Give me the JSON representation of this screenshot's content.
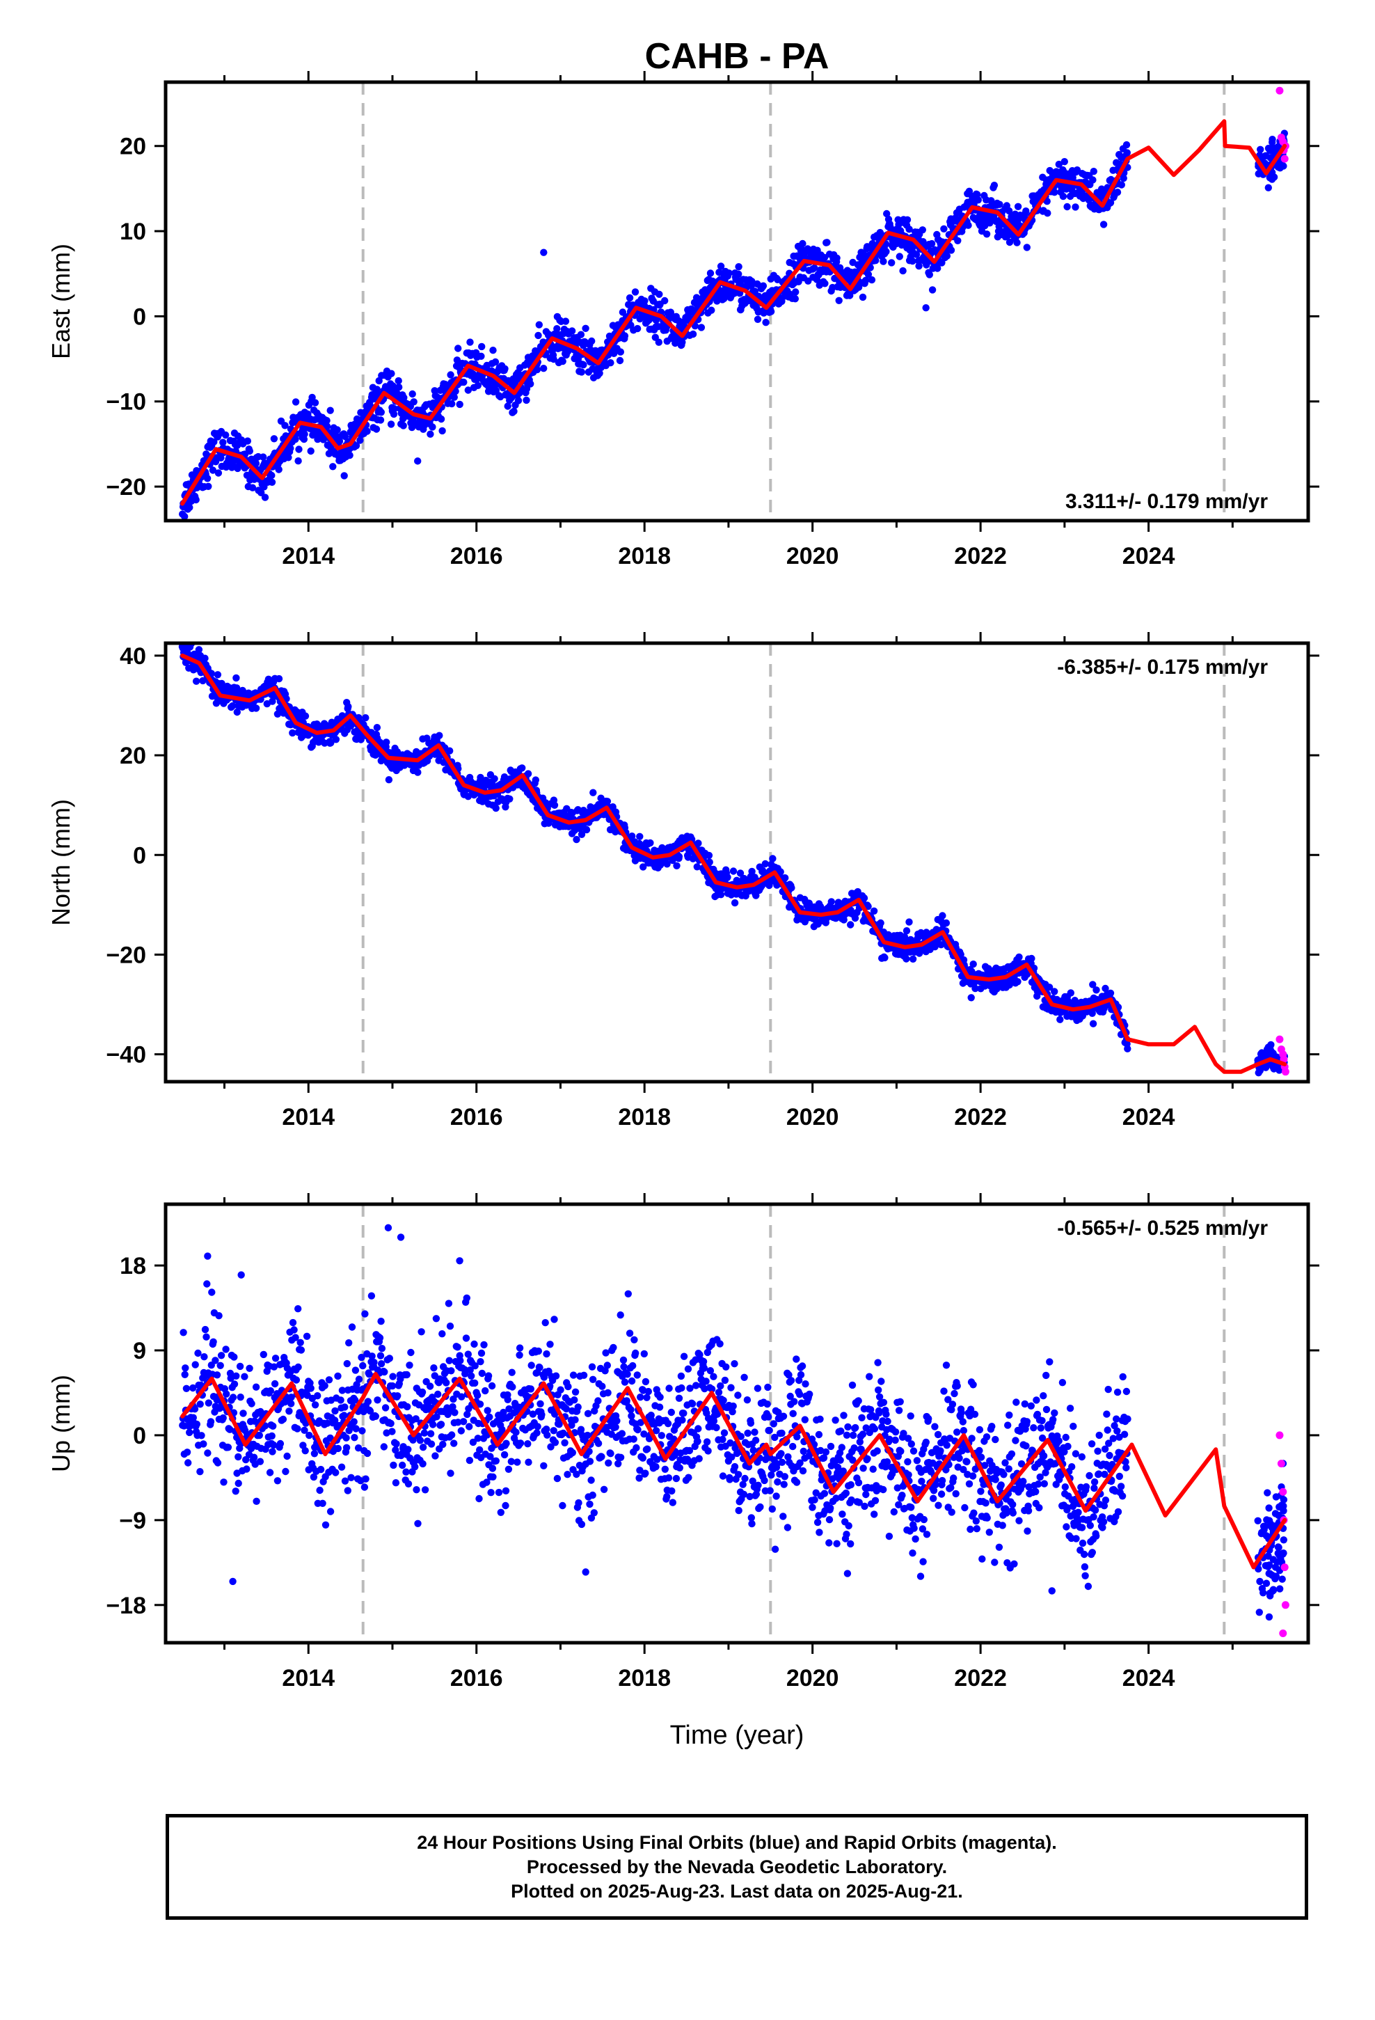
{
  "figure": {
    "title": "CAHB - PA",
    "xlabel": "Time (year)"
  },
  "footer": {
    "line1": "24 Hour Positions Using Final Orbits (blue) and Rapid Orbits (magenta).",
    "line2": "Processed by the Nevada Geodetic Laboratory.",
    "line3": "Plotted on 2025-Aug-23. Last data on 2025-Aug-21."
  },
  "colors": {
    "final_orbits": "#0000ff",
    "rapid_orbits": "#ff00ff",
    "model": "#ff0000",
    "break_line": "#bbbbbb"
  },
  "chart_data": [
    {
      "type": "scatter",
      "name": "east",
      "ylabel": "East (mm)",
      "rate_label": "3.311+/- 0.179 mm/yr",
      "rate_position": "bottom-right",
      "xlim": [
        2012.3,
        2025.9
      ],
      "ylim": [
        -24,
        27.5
      ],
      "yticks": [
        -20,
        -10,
        0,
        10,
        20
      ],
      "xticks": [
        2014,
        2016,
        2018,
        2020,
        2022,
        2024
      ],
      "break_lines": [
        2014.65,
        2019.5,
        2024.9
      ],
      "data_span": [
        2012.5,
        2023.75
      ],
      "rapid_span": [
        2025.3,
        2025.62
      ],
      "trend": {
        "rate": 3.311,
        "value_at_2019": 2.0
      },
      "model_curve": {
        "x": [
          2012.5,
          2012.9,
          2013.2,
          2013.45,
          2013.9,
          2014.15,
          2014.35,
          2014.5,
          2014.9,
          2015.25,
          2015.45,
          2015.9,
          2016.2,
          2016.45,
          2016.9,
          2017.2,
          2017.45,
          2017.9,
          2018.2,
          2018.45,
          2018.9,
          2019.2,
          2019.45,
          2019.9,
          2020.2,
          2020.45,
          2020.9,
          2021.2,
          2021.45,
          2021.9,
          2022.2,
          2022.45,
          2022.9,
          2023.2,
          2023.45,
          2023.75,
          2024.0,
          2024.3,
          2024.6,
          2024.9,
          2024.91,
          2025.2,
          2025.4,
          2025.62
        ],
        "y": [
          -22,
          -15.6,
          -16.5,
          -19,
          -12.5,
          -13,
          -15.5,
          -15,
          -9,
          -11.5,
          -12,
          -5.8,
          -7,
          -9,
          -2.6,
          -3.8,
          -5.5,
          1,
          0,
          -2.3,
          4,
          3,
          1,
          6.5,
          6,
          3.2,
          9.8,
          9,
          6.4,
          12.8,
          12.2,
          9.6,
          16,
          15.5,
          13,
          18.5,
          19.8,
          16.6,
          19.5,
          22.9,
          20,
          19.8,
          16.8,
          20
        ]
      },
      "noise": 1.2,
      "outliers": [
        [
          2021.35,
          1
        ],
        [
          2016.8,
          7.5
        ],
        [
          2015.3,
          -17
        ]
      ],
      "rapid_points": {
        "x": [
          2025.56,
          2025.58,
          2025.6,
          2025.61,
          2025.62,
          2025.63
        ],
        "y": [
          26.5,
          21,
          20.5,
          19.5,
          18.5,
          20
        ]
      }
    },
    {
      "type": "scatter",
      "name": "north",
      "ylabel": "North (mm)",
      "rate_label": "-6.385+/- 0.175 mm/yr",
      "rate_position": "top-right",
      "xlim": [
        2012.3,
        2025.9
      ],
      "ylim": [
        -45.5,
        42.5
      ],
      "yticks": [
        -40,
        -20,
        0,
        20,
        40
      ],
      "xticks": [
        2014,
        2016,
        2018,
        2020,
        2022,
        2024
      ],
      "break_lines": [
        2014.65,
        2019.5,
        2024.9
      ],
      "data_span": [
        2012.5,
        2023.75
      ],
      "rapid_span": [
        2025.3,
        2025.62
      ],
      "model_curve": {
        "x": [
          2012.5,
          2012.7,
          2012.95,
          2013.3,
          2013.6,
          2013.85,
          2014.1,
          2014.3,
          2014.5,
          2014.7,
          2014.95,
          2015.3,
          2015.55,
          2015.85,
          2016.1,
          2016.3,
          2016.55,
          2016.85,
          2017.1,
          2017.3,
          2017.55,
          2017.85,
          2018.1,
          2018.3,
          2018.55,
          2018.85,
          2019.1,
          2019.3,
          2019.55,
          2019.85,
          2020.1,
          2020.3,
          2020.55,
          2020.85,
          2021.1,
          2021.3,
          2021.55,
          2021.85,
          2022.1,
          2022.3,
          2022.55,
          2022.85,
          2023.1,
          2023.3,
          2023.55,
          2023.75,
          2024.0,
          2024.3,
          2024.55,
          2024.8,
          2024.9,
          2025.1,
          2025.3,
          2025.45,
          2025.62
        ],
        "y": [
          40,
          38.5,
          32,
          31,
          33.5,
          26.5,
          24.5,
          25,
          28,
          24,
          19.5,
          19,
          22,
          14,
          12.5,
          13,
          16,
          8,
          6.5,
          7,
          9.5,
          1.5,
          -0.5,
          0,
          2.5,
          -5.5,
          -6.5,
          -6,
          -3.5,
          -11.5,
          -12,
          -11.5,
          -9,
          -17.5,
          -18.5,
          -18,
          -15.5,
          -24.5,
          -25,
          -24.5,
          -22,
          -30,
          -31,
          -30.5,
          -29,
          -37,
          -38,
          -38,
          -34.5,
          -42,
          -43.5,
          -43.5,
          -42,
          -41,
          -42
        ]
      },
      "noise": 1.3,
      "outliers": [],
      "rapid_points": {
        "x": [
          2025.56,
          2025.58,
          2025.6,
          2025.61,
          2025.62,
          2025.63
        ],
        "y": [
          -37,
          -39,
          -40,
          -41,
          -42.5,
          -43.5
        ]
      }
    },
    {
      "type": "scatter",
      "name": "up",
      "ylabel": "Up (mm)",
      "rate_label": "-0.565+/- 0.525 mm/yr",
      "rate_position": "top-right",
      "xlim": [
        2012.3,
        2025.9
      ],
      "ylim": [
        -22,
        24.5
      ],
      "yticks": [
        -18,
        -9,
        0,
        9,
        18
      ],
      "xticks": [
        2014,
        2016,
        2018,
        2020,
        2022,
        2024
      ],
      "break_lines": [
        2014.65,
        2019.5,
        2024.9
      ],
      "data_span": [
        2012.5,
        2023.75
      ],
      "rapid_span": [
        2025.3,
        2025.62
      ],
      "model_curve": {
        "x": [
          2012.5,
          2012.85,
          2013.25,
          2013.8,
          2014.2,
          2014.65,
          2014.8,
          2015.25,
          2015.8,
          2016.25,
          2016.8,
          2017.25,
          2017.8,
          2018.25,
          2018.8,
          2019.25,
          2019.45,
          2019.5,
          2019.85,
          2020.25,
          2020.8,
          2021.25,
          2021.8,
          2022.2,
          2022.8,
          2023.25,
          2023.8,
          2024.2,
          2024.8,
          2024.9,
          2025.25,
          2025.62
        ],
        "y": [
          2,
          6,
          -1,
          5.5,
          -2,
          4,
          6.5,
          0,
          6,
          -1,
          5.5,
          -2,
          5,
          -2.5,
          4.5,
          -3,
          -1,
          -2,
          1,
          -6,
          0,
          -7,
          0,
          -7,
          -0.5,
          -8,
          -1,
          -8.5,
          -1.5,
          -7.5,
          -14,
          -9
        ]
      },
      "noise": 3.6,
      "outliers": [
        [
          2014.95,
          22
        ],
        [
          2015.1,
          21
        ],
        [
          2012.8,
          19
        ],
        [
          2013.2,
          17
        ],
        [
          2015.8,
          18.5
        ],
        [
          2013.1,
          -15.5
        ],
        [
          2022.85,
          -16.5
        ],
        [
          2017.3,
          -14.5
        ]
      ],
      "rapid_points": {
        "x": [
          2025.56,
          2025.58,
          2025.6,
          2025.61,
          2025.62,
          2025.63,
          2025.6
        ],
        "y": [
          0,
          -3,
          -6,
          -9,
          -14,
          -18,
          -21
        ]
      }
    }
  ]
}
